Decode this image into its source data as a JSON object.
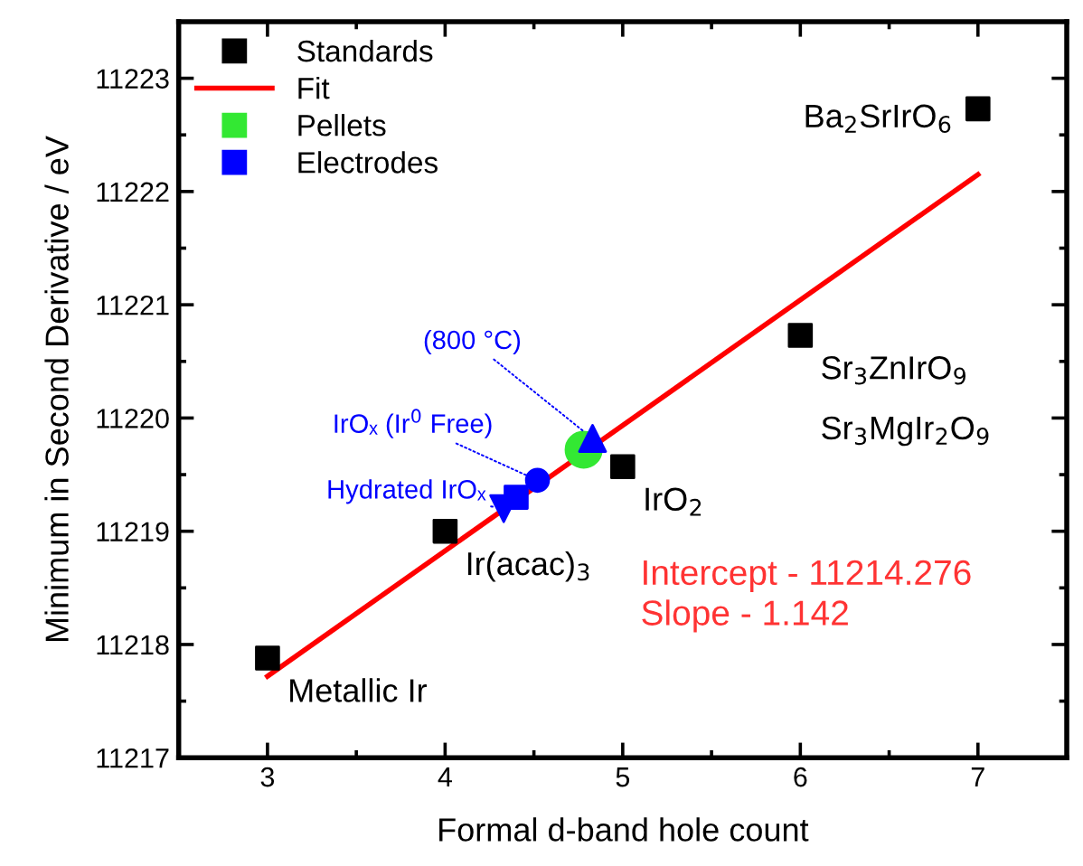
{
  "chart_data": {
    "type": "scatter",
    "xlabel": "Formal d-band hole count",
    "ylabel": "Minimum in Second Derivative / eV",
    "xlim": [
      2.5,
      7.5
    ],
    "xticks": [
      3,
      4,
      5,
      6,
      7
    ],
    "ylim": [
      11217,
      11223.5
    ],
    "yticks": [
      11217,
      11218,
      11219,
      11220,
      11221,
      11222,
      11223
    ],
    "grid": false,
    "legend": "top left",
    "series": [
      {
        "name": "Standards",
        "color": "#000000",
        "marker": "square",
        "x": [
          3,
          4,
          5,
          6,
          7
        ],
        "values": [
          11217.88,
          11219.0,
          11219.57,
          11220.73,
          11222.73
        ]
      },
      {
        "name": "Fit",
        "type": "line",
        "color": "#ff0000",
        "marker": "none",
        "line_style": "solid",
        "x": [
          3,
          7
        ],
        "values": [
          11217.72,
          11222.15
        ]
      },
      {
        "name": "Pellets",
        "color": "#33e833",
        "marker": "circle",
        "x": [
          4.78
        ],
        "values": [
          11219.72
        ]
      },
      {
        "color": "#0000ff",
        "marker": "triangle_down",
        "x": [
          4.33
        ],
        "values": [
          11219.2
        ]
      },
      {
        "name": "Electrodes",
        "color": "#0000ff",
        "marker": "square",
        "x": [
          4.4
        ],
        "values": [
          11219.3
        ]
      },
      {
        "color": "#0000ff",
        "marker": "circle",
        "x": [
          4.52
        ],
        "values": [
          11219.45
        ]
      },
      {
        "color": "#0000ff",
        "marker": "triangle",
        "x": [
          4.83
        ],
        "values": [
          11219.82
        ]
      }
    ],
    "annotations": [
      {
        "text": "Metallic Ir",
        "x": 3,
        "y": 11217.88
      },
      {
        "text": "Ir(acac)$_{3}$",
        "x": 4,
        "y": 11219.0
      },
      {
        "text": "IrO$_{2}$",
        "x": 5,
        "y": 11219.57
      },
      {
        "text": "Sr$_{3}$ZnIrO$_{9}$",
        "x": 6,
        "y": 11220.73
      },
      {
        "text": "Sr$_{3}$MgIr$_{2}$O$_{9}$",
        "x": 6,
        "y": 11220.73
      },
      {
        "text": "Ba$_{2}$SrIrO$_{6}$",
        "x": 7,
        "y": 11222.73
      },
      {
        "text": "Hydrated IrOₓ",
        "x": 4.33,
        "y": 11219.2
      },
      {
        "text": "IrOₓ (Ir$^{0}$ Free)",
        "x": 4.52,
        "y": 11219.45
      },
      {
        "text": "(800 °C)",
        "x": 4.83,
        "y": 11219.82
      },
      "Intercept - 11214.276\nSlope - 1.142"
    ]
  }
}
